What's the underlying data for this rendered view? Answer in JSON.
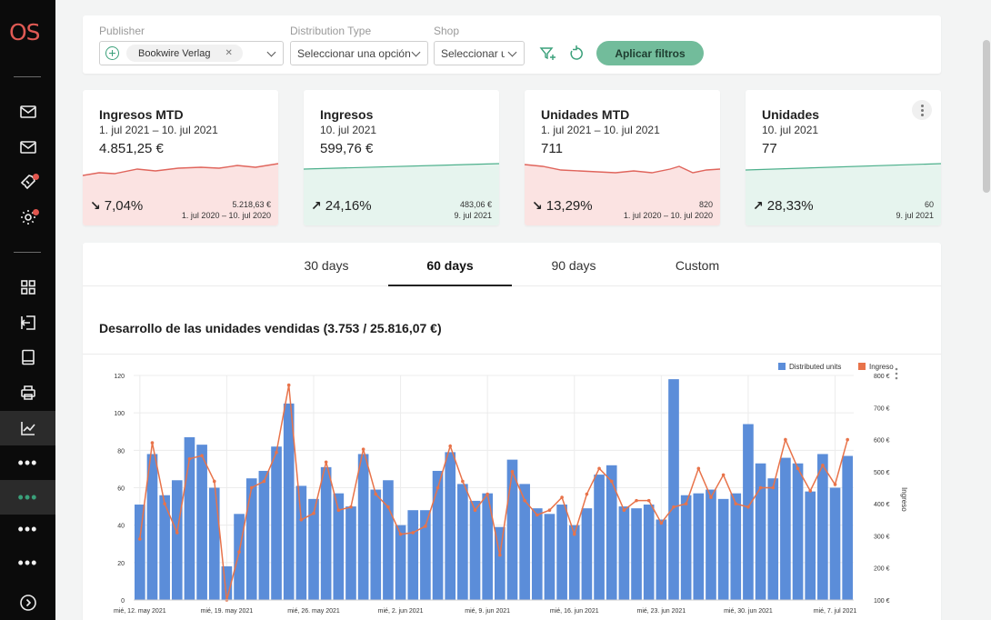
{
  "sidebar": {
    "logo": "OS",
    "items": [
      {
        "icon": "mail-icon"
      },
      {
        "icon": "mail-icon"
      },
      {
        "icon": "ticket-icon",
        "badge": true
      },
      {
        "icon": "gear-icon",
        "badge": true
      },
      {
        "icon": "grid-icon"
      },
      {
        "icon": "logout-icon"
      },
      {
        "icon": "book-icon"
      },
      {
        "icon": "printer-icon"
      },
      {
        "icon": "chart-line-icon",
        "active": true
      },
      {
        "icon": "more-icon"
      },
      {
        "icon": "more-icon",
        "active": true
      },
      {
        "icon": "more-icon"
      },
      {
        "icon": "more-icon"
      },
      {
        "icon": "chevron-right-circle-icon"
      }
    ]
  },
  "filters": {
    "publisher_label": "Publisher",
    "publisher_chip": "Bookwire Verlag",
    "distribution_label": "Distribution Type",
    "distribution_placeholder": "Seleccionar una opción",
    "shop_label": "Shop",
    "shop_placeholder": "Seleccionar u",
    "apply_label": "Aplicar filtros"
  },
  "kpis": [
    {
      "title": "Ingresos MTD",
      "range": "1. jul 2021 – 10. jul 2021",
      "value": "4.851,25 €",
      "pct": "7,04%",
      "direction": "down",
      "compare_value": "5.218,63 €",
      "compare_range": "1. jul 2020 – 10. jul 2020"
    },
    {
      "title": "Ingresos",
      "range": "10. jul 2021",
      "value": "599,76 €",
      "pct": "24,16%",
      "direction": "up",
      "compare_value": "483,06 €",
      "compare_range": "9. jul 2021"
    },
    {
      "title": "Unidades MTD",
      "range": "1. jul 2021 – 10. jul 2021",
      "value": "711",
      "pct": "13,29%",
      "direction": "down",
      "compare_value": "820",
      "compare_range": "1. jul 2020 – 10. jul 2020"
    },
    {
      "title": "Unidades",
      "range": "10. jul 2021",
      "value": "77",
      "pct": "28,33%",
      "direction": "up",
      "compare_value": "60",
      "compare_range": "9. jul 2021"
    }
  ],
  "colors": {
    "down_bg": "#fbe3e2",
    "down_line": "#e0655c",
    "up_bg": "#e6f4ee",
    "up_line": "#4db08c",
    "bar": "#5b8dd9",
    "line": "#e8734a",
    "accent": "#72bc9b"
  },
  "tabs": {
    "t30": "30 days",
    "t60": "60 days",
    "t90": "90 days",
    "custom": "Custom",
    "active": "60 days"
  },
  "chart": {
    "title": "Desarrollo de las unidades vendidas (3.753 / 25.816,07 €)",
    "legend_units": "Distributed units",
    "legend_revenue": "Ingreso",
    "right_axis_label": "Ingreso",
    "left_ticks": [
      "0",
      "20",
      "40",
      "60",
      "80",
      "100",
      "120"
    ],
    "right_ticks": [
      "100 €",
      "200 €",
      "300 €",
      "400 €",
      "500 €",
      "600 €",
      "700 €",
      "800 €"
    ],
    "x_ticks": [
      "mié, 12. may 2021",
      "mié, 19. may 2021",
      "mié, 26. may 2021",
      "mié, 2. jun 2021",
      "mié, 9. jun 2021",
      "mié, 16. jun 2021",
      "mié, 23. jun 2021",
      "mié, 30. jun 2021",
      "mié, 7. jul 2021"
    ]
  },
  "chart_data": {
    "type": "bar",
    "ylim": [
      0,
      120
    ],
    "y2lim": [
      100,
      800
    ],
    "series": [
      {
        "name": "Distributed units",
        "type": "bar",
        "values": [
          51,
          78,
          56,
          64,
          87,
          83,
          60,
          18,
          46,
          65,
          69,
          82,
          105,
          61,
          54,
          71,
          57,
          50,
          78,
          59,
          64,
          40,
          48,
          48,
          69,
          79,
          62,
          53,
          57,
          39,
          75,
          62,
          49,
          46,
          51,
          40,
          49,
          67,
          72,
          50,
          49,
          51,
          43,
          118,
          56,
          57,
          59,
          54,
          57,
          94,
          73,
          65,
          76,
          73,
          58,
          78,
          60,
          77
        ]
      },
      {
        "name": "Ingreso",
        "type": "line",
        "values": [
          290,
          590,
          400,
          310,
          540,
          550,
          470,
          100,
          250,
          450,
          470,
          560,
          770,
          350,
          370,
          530,
          380,
          390,
          570,
          430,
          390,
          305,
          310,
          330,
          450,
          580,
          470,
          380,
          430,
          240,
          500,
          410,
          365,
          380,
          420,
          305,
          430,
          510,
          470,
          380,
          410,
          410,
          340,
          390,
          400,
          510,
          420,
          490,
          400,
          390,
          450,
          450,
          600,
          510,
          440,
          520,
          460,
          600
        ]
      }
    ]
  }
}
